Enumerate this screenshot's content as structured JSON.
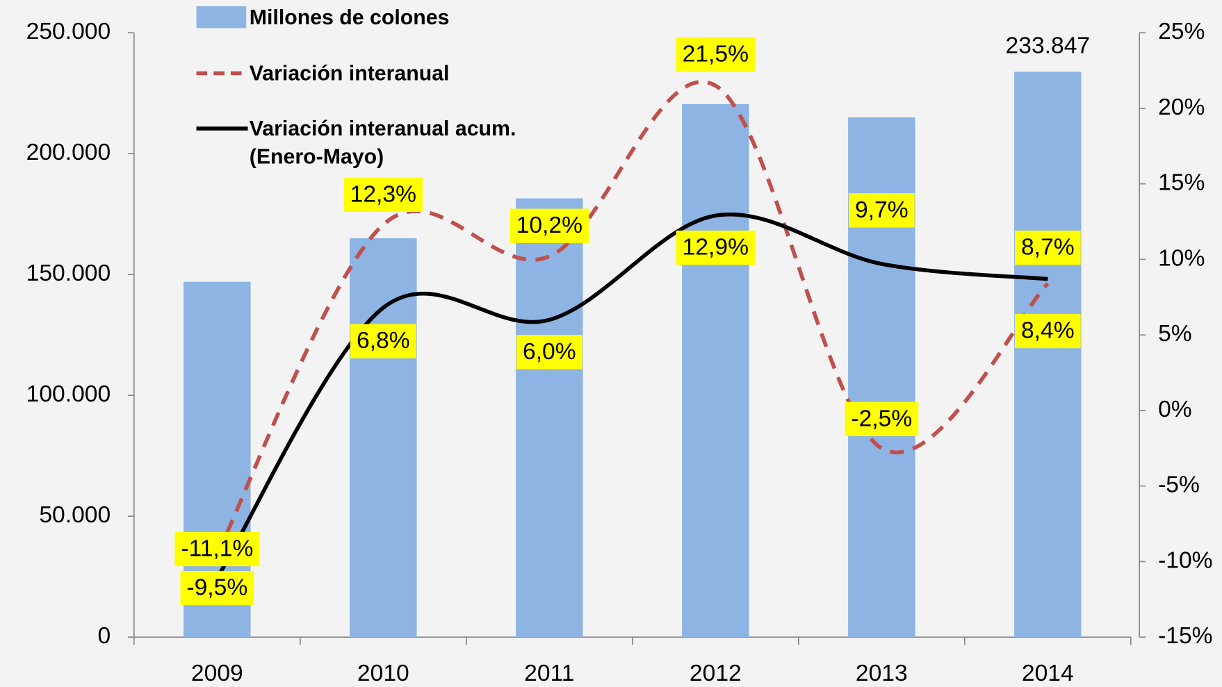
{
  "chart_data": {
    "type": "bar",
    "categories": [
      "2009",
      "2010",
      "2011",
      "2012",
      "2013",
      "2014"
    ],
    "series": [
      {
        "name": "Millones de colones",
        "type": "bar",
        "color": "#8eb4e3",
        "values": [
          147000,
          165000,
          181500,
          220500,
          215000,
          233847
        ],
        "value_labels": [
          null,
          null,
          null,
          null,
          null,
          "233.847"
        ]
      },
      {
        "name": "Variación interanual",
        "type": "line",
        "style": "dashed",
        "axis": "y2",
        "color": "#c0504d",
        "values": [
          -9.5,
          12.3,
          10.2,
          21.5,
          -2.5,
          8.4
        ],
        "value_labels": [
          "-9,5%",
          "12,3%",
          "10,2%",
          "21,5%",
          "-2,5%",
          "8,4%"
        ]
      },
      {
        "name": "Variación interanual acum. (Enero-Mayo)",
        "type": "line",
        "style": "solid",
        "axis": "y2",
        "color": "#000000",
        "values": [
          -11.1,
          6.8,
          6.0,
          12.9,
          9.7,
          8.7
        ],
        "value_labels": [
          "-11,1%",
          "6,8%",
          "6,0%",
          "12,9%",
          "9,7%",
          "8,7%"
        ]
      }
    ],
    "ylim": [
      0,
      250000
    ],
    "yticks": [
      0,
      {
        "value": 50000,
        "label": "50.000"
      },
      {
        "value": 100000,
        "label": "100.000"
      },
      {
        "value": 150000,
        "label": "150.000"
      },
      {
        "value": 200000,
        "label": "200.000"
      },
      {
        "value": 250000,
        "label": "250.000"
      }
    ],
    "y2lim": [
      -15,
      25
    ],
    "y2ticks": [
      {
        "value": -15,
        "label": "-15%"
      },
      {
        "value": -10,
        "label": "-10%"
      },
      {
        "value": -5,
        "label": "-5%"
      },
      {
        "value": 0,
        "label": "0%"
      },
      {
        "value": 5,
        "label": "5%"
      },
      {
        "value": 10,
        "label": "10%"
      },
      {
        "value": 15,
        "label": "15%"
      },
      {
        "value": 20,
        "label": "20%"
      },
      {
        "value": 25,
        "label": "25%"
      }
    ],
    "label_background": "#ffff00"
  }
}
